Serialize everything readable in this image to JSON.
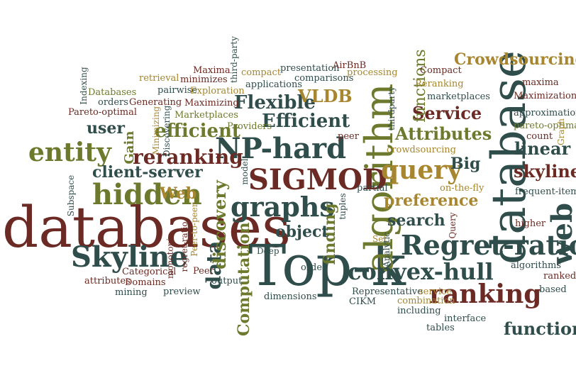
{
  "word_cloud": {
    "words": {
      "databases": "databases",
      "top_k": "Top-k",
      "database": "database",
      "algorithm": "algorithm",
      "np_hard": "NP-hard",
      "sigmod": "SIGMOD",
      "regret_ratio": "Regret-ratio",
      "skyline_big": "Skyline",
      "hidden": "hidden",
      "graphs": "graphs",
      "query": "query",
      "entity": "entity",
      "web_vertical": "web",
      "convex_hull": "convex-hull",
      "ranking": "ranking",
      "reranking": "reranking",
      "data": "data",
      "discovery": "discovery",
      "computation": "Computation",
      "finding": "finding",
      "crowdsourcing_top": "Crowdsourcing",
      "efficient_cap": "Efficient",
      "efficient": "efficient",
      "flexible": "Flexible",
      "vldb": "VLDB",
      "attributes_cap": "Attributes",
      "service_cap": "Service",
      "linear": "linear",
      "skyline_small": "skyline",
      "function": "function",
      "preference": "preference",
      "search": "search",
      "client_server": "client-server",
      "user": "user",
      "gain": "Gain",
      "web_cap": "Web",
      "object": "object",
      "big": "Big",
      "functions": "functions",
      "maxima": "Maxima",
      "minimizes": "minimizes",
      "maximizing": "Maximizing",
      "exploration": "Exploration",
      "pairwise": "pairwise",
      "retrieval": "retrieval",
      "databases_small": "Databases",
      "orders": "orders",
      "generating": "Generating",
      "pareto_optimal_cap": "Pareto-optimal",
      "indexing": "Indexing",
      "minimizing": "Minimizing",
      "discovering": "Discovering",
      "marketplaces_cap": "Marketplaces",
      "providers": "Providers",
      "third_party_vertical": "third-party",
      "compact_a": "compact",
      "presentation": "presentation",
      "applications": "applications",
      "comparisons": "comparisons",
      "airbnb": "AirBnB",
      "processing": "processing",
      "compact_b": "Compact",
      "reranking_cap": "Reranking",
      "marketplaces": "marketplaces",
      "maxima_small": "maxima",
      "maximization": "Maximization",
      "approximation": "approximation",
      "pareto_optimal": "pareto-optimal",
      "count": "count",
      "graph": "Graph",
      "frequent_item": "frequent-item",
      "thirdparty": "thirdparty",
      "peer_a": "peer",
      "crowdsourcing_small": "crowdsourcing",
      "on_the_fly": "on-the-fly",
      "partial": "partial",
      "model": "model",
      "subspace": "Subspace",
      "tuples": "tuples",
      "peer_to_peer": "Peer-to-peer",
      "regret_ratio_small": "regret-ratio",
      "monotonic": "monotonic",
      "deep": "Deep",
      "categorical": "Categorical",
      "domains": "Domains",
      "attributes": "attributes",
      "mining": "mining",
      "preview": "preview",
      "peer_b": "Peer",
      "output": "output",
      "dimensions": "dimensions",
      "order": "order",
      "set": "Set",
      "analytic": "Analytic",
      "query_small": "Query",
      "higher": "higher",
      "algorithms": "algorithms",
      "ranked": "ranked",
      "based": "based",
      "representative": "Representative",
      "cikm": "CIKM",
      "service_small": "service",
      "combination": "combination",
      "including": "including",
      "interface": "interface",
      "tables": "tables"
    },
    "palette": {
      "maroon": "#6b2a23",
      "slate": "#2f4d4a",
      "olive": "#6d7a2d",
      "gold": "#a7862f",
      "tan": "#b9934f"
    }
  }
}
